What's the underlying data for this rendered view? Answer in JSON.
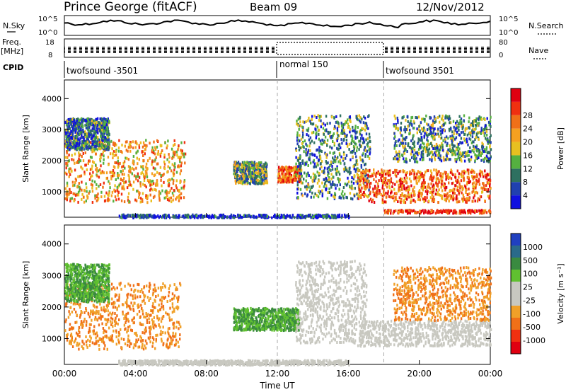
{
  "header": {
    "station": "Prince George (fitACF)",
    "beam": "Beam 09",
    "date": "12/Nov/2012"
  },
  "sky_panel": {
    "left_label": "N.Sky",
    "left_ticks": [
      "10^5",
      "10^0"
    ],
    "right_ticks": [
      "10^5",
      "10^0"
    ],
    "right_label": "N.Search"
  },
  "freq_panel": {
    "left_label_1": "Freq.",
    "left_label_2": "[MHz]",
    "left_ticks": [
      "18",
      "8"
    ],
    "right_ticks": [
      "80",
      "0"
    ],
    "right_label": "Nave"
  },
  "cpid_panel": {
    "label": "CPID",
    "segments": [
      {
        "name": "twofsound -3501",
        "start_hour": 0
      },
      {
        "name": "normal 150",
        "start_hour": 12
      },
      {
        "name": "twofsound 3501",
        "start_hour": 18
      }
    ]
  },
  "colors": {
    "power_scale": [
      "#1010e0",
      "#2040b0",
      "#2e7060",
      "#55b040",
      "#e8c020",
      "#f5a020",
      "#f07018",
      "#f03010",
      "#e00010"
    ],
    "velocity_scale": [
      "#2040c0",
      "#2a6a8a",
      "#3a8a40",
      "#60c030",
      "#c8c8c0",
      "#c8c8c0",
      "#f0a028",
      "#f07018",
      "#f03010",
      "#e00010"
    ],
    "gridline": "#aaaaaa"
  },
  "chart_data": [
    {
      "type": "heatmap",
      "panel": "power",
      "title": "",
      "xlabel": "",
      "ylabel": "Slant Range [km]",
      "xlim": [
        0,
        24
      ],
      "ylim": [
        180,
        4600
      ],
      "yticks": [
        1000,
        2000,
        3000,
        4000
      ],
      "colorbar": {
        "label": "Power [dB]",
        "ticks": [
          "4",
          "8",
          "12",
          "16",
          "20",
          "24",
          "28"
        ],
        "range": [
          0,
          32
        ]
      },
      "scatter_regions": [
        {
          "t0": 0.0,
          "t1": 6.8,
          "r0": 700,
          "r1": 2700,
          "value": 20
        },
        {
          "t0": 0.0,
          "t1": 2.5,
          "r0": 2400,
          "r1": 3400,
          "value": 8
        },
        {
          "t0": 9.5,
          "t1": 11.4,
          "r0": 1300,
          "r1": 2000,
          "value": 12
        },
        {
          "t0": 12.0,
          "t1": 13.3,
          "r0": 1350,
          "r1": 1850,
          "value": 24
        },
        {
          "t0": 13.0,
          "t1": 17.2,
          "r0": 800,
          "r1": 3500,
          "value": 10
        },
        {
          "t0": 16.5,
          "t1": 24.0,
          "r0": 700,
          "r1": 1750,
          "value": 24
        },
        {
          "t0": 18.5,
          "t1": 24.0,
          "r0": 2000,
          "r1": 3500,
          "value": 10
        },
        {
          "t0": 18.0,
          "t1": 24.0,
          "r0": 350,
          "r1": 450,
          "value": 28
        },
        {
          "t0": 3.0,
          "t1": 16.0,
          "r0": 200,
          "r1": 300,
          "value": 4
        }
      ]
    },
    {
      "type": "heatmap",
      "panel": "velocity",
      "title": "",
      "xlabel": "Time UT",
      "ylabel": "Slant Range [km]",
      "xlim": [
        0,
        24
      ],
      "ylim": [
        180,
        4600
      ],
      "yticks": [
        1000,
        2000,
        3000,
        4000
      ],
      "xticks": [
        "00:00",
        "04:00",
        "08:00",
        "12:00",
        "16:00",
        "20:00",
        "00:00"
      ],
      "colorbar": {
        "label": "Velocity [m s⁻¹]",
        "ticks": [
          "1000",
          "500",
          "100",
          "25",
          "-25",
          "-100",
          "-500",
          "-1000"
        ]
      },
      "scatter_regions": [
        {
          "t0": 0.0,
          "t1": 6.5,
          "r0": 700,
          "r1": 2800,
          "value": -100
        },
        {
          "t0": 0.0,
          "t1": 2.5,
          "r0": 2200,
          "r1": 3400,
          "value": 100
        },
        {
          "t0": 9.5,
          "t1": 13.2,
          "r0": 1300,
          "r1": 2000,
          "value": 100
        },
        {
          "t0": 13.0,
          "t1": 17.0,
          "r0": 900,
          "r1": 3500,
          "value": 0
        },
        {
          "t0": 16.5,
          "t1": 24.0,
          "r0": 800,
          "r1": 1600,
          "value": 0
        },
        {
          "t0": 18.5,
          "t1": 24.0,
          "r0": 1600,
          "r1": 3300,
          "value": -100
        },
        {
          "t0": 3.0,
          "t1": 16.0,
          "r0": 200,
          "r1": 350,
          "value": -25
        }
      ]
    }
  ]
}
